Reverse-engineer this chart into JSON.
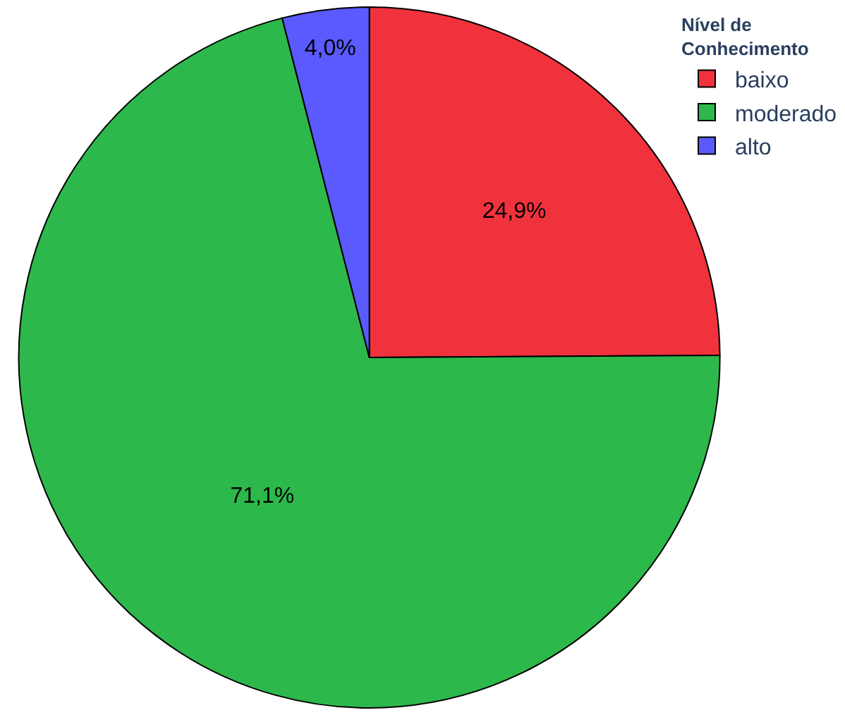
{
  "chart_data": {
    "type": "pie",
    "legend_title": "Nível de\nConhecimento",
    "categories": [
      "baixo",
      "moderado",
      "alto"
    ],
    "values": [
      24.9,
      71.1,
      4.0
    ],
    "value_labels": [
      "24,9%",
      "71,1%",
      "4,0%"
    ],
    "colors": [
      "#f0323c",
      "#2db84b",
      "#5a5aff"
    ],
    "legend": "top right"
  }
}
